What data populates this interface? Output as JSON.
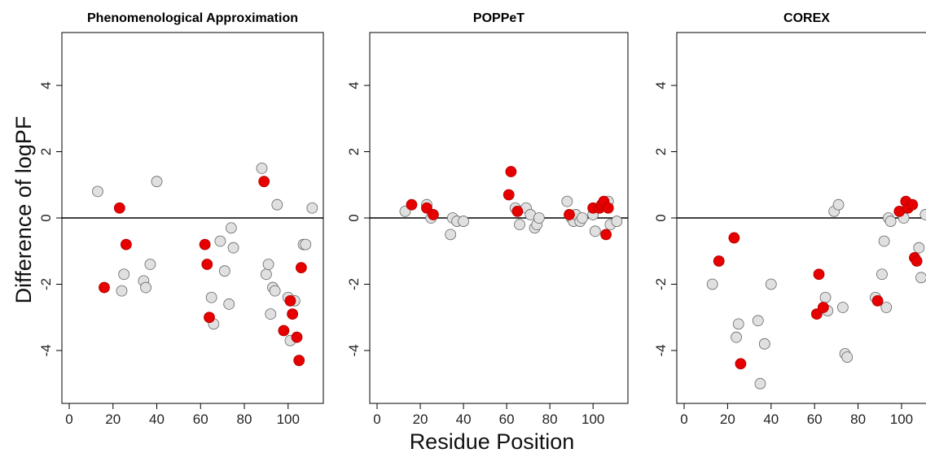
{
  "figure": {
    "xlabel": "Residue Position",
    "ylabel": "Difference of logPF"
  },
  "colors": {
    "highlight": "#e60000",
    "other": "#e0e0e0",
    "outline": "#666666",
    "axis": "#000000"
  },
  "chart_data": [
    {
      "type": "scatter",
      "title": "Phenomenological Approximation",
      "xlim": [
        0,
        112
      ],
      "ylim": [
        -5.4,
        5.4
      ],
      "xticks": [
        0,
        20,
        40,
        60,
        80,
        100
      ],
      "yticks": [
        -4,
        -2,
        0,
        2,
        4
      ],
      "hline": 0,
      "series": [
        {
          "color": "grey",
          "points": [
            [
              13,
              0.8
            ],
            [
              24,
              -2.2
            ],
            [
              25,
              -1.7
            ],
            [
              34,
              -1.9
            ],
            [
              35,
              -2.1
            ],
            [
              37,
              -1.4
            ],
            [
              40,
              1.1
            ],
            [
              65,
              -2.4
            ],
            [
              66,
              -3.2
            ],
            [
              69,
              -0.7
            ],
            [
              71,
              -1.6
            ],
            [
              73,
              -2.6
            ],
            [
              74,
              -0.3
            ],
            [
              75,
              -0.9
            ],
            [
              88,
              1.5
            ],
            [
              90,
              -1.7
            ],
            [
              91,
              -1.4
            ],
            [
              92,
              -2.9
            ],
            [
              93,
              -2.1
            ],
            [
              94,
              -2.2
            ],
            [
              95,
              0.4
            ],
            [
              100,
              -2.4
            ],
            [
              101,
              -3.7
            ],
            [
              103,
              -2.5
            ],
            [
              107,
              -0.8
            ],
            [
              108,
              -0.8
            ],
            [
              111,
              0.3
            ]
          ]
        },
        {
          "color": "red",
          "points": [
            [
              16,
              -2.1
            ],
            [
              23,
              0.3
            ],
            [
              26,
              -0.8
            ],
            [
              62,
              -0.8
            ],
            [
              63,
              -1.4
            ],
            [
              64,
              -3.0
            ],
            [
              89,
              1.1
            ],
            [
              98,
              -3.4
            ],
            [
              101,
              -2.5
            ],
            [
              102,
              -2.9
            ],
            [
              104,
              -3.6
            ],
            [
              105,
              -4.3
            ],
            [
              106,
              -1.5
            ]
          ]
        }
      ]
    },
    {
      "type": "scatter",
      "title": "POPPeT",
      "xlim": [
        0,
        112
      ],
      "ylim": [
        -5.4,
        5.4
      ],
      "xticks": [
        0,
        20,
        40,
        60,
        80,
        100
      ],
      "yticks": [
        -4,
        -2,
        0,
        2,
        4
      ],
      "hline": 0,
      "series": [
        {
          "color": "grey",
          "points": [
            [
              13,
              0.2
            ],
            [
              23,
              0.4
            ],
            [
              25,
              0.0
            ],
            [
              34,
              -0.5
            ],
            [
              35,
              0.0
            ],
            [
              37,
              -0.1
            ],
            [
              40,
              -0.1
            ],
            [
              64,
              0.3
            ],
            [
              66,
              -0.2
            ],
            [
              69,
              0.3
            ],
            [
              71,
              0.1
            ],
            [
              73,
              -0.3
            ],
            [
              74,
              -0.2
            ],
            [
              75,
              0.0
            ],
            [
              88,
              0.5
            ],
            [
              90,
              0.0
            ],
            [
              91,
              -0.1
            ],
            [
              92,
              0.1
            ],
            [
              94,
              -0.1
            ],
            [
              95,
              0.0
            ],
            [
              100,
              0.1
            ],
            [
              101,
              -0.4
            ],
            [
              103,
              0.3
            ],
            [
              107,
              0.5
            ],
            [
              108,
              -0.2
            ],
            [
              111,
              -0.1
            ]
          ]
        },
        {
          "color": "red",
          "points": [
            [
              16,
              0.4
            ],
            [
              23,
              0.3
            ],
            [
              26,
              0.1
            ],
            [
              61,
              0.7
            ],
            [
              62,
              1.4
            ],
            [
              65,
              0.2
            ],
            [
              89,
              0.1
            ],
            [
              100,
              0.3
            ],
            [
              103,
              0.3
            ],
            [
              104,
              0.4
            ],
            [
              105,
              0.5
            ],
            [
              106,
              -0.5
            ],
            [
              107,
              0.3
            ]
          ]
        }
      ]
    },
    {
      "type": "scatter",
      "title": "COREX",
      "xlim": [
        0,
        112
      ],
      "ylim": [
        -5.4,
        5.4
      ],
      "xticks": [
        0,
        20,
        40,
        60,
        80,
        100
      ],
      "yticks": [
        -4,
        -2,
        0,
        2,
        4
      ],
      "hline": 0,
      "series": [
        {
          "color": "grey",
          "points": [
            [
              13,
              -2.0
            ],
            [
              24,
              -3.6
            ],
            [
              25,
              -3.2
            ],
            [
              34,
              -3.1
            ],
            [
              35,
              -5.0
            ],
            [
              37,
              -3.8
            ],
            [
              40,
              -2.0
            ],
            [
              65,
              -2.4
            ],
            [
              66,
              -2.8
            ],
            [
              69,
              0.2
            ],
            [
              71,
              0.4
            ],
            [
              73,
              -2.7
            ],
            [
              74,
              -4.1
            ],
            [
              75,
              -4.2
            ],
            [
              88,
              -2.4
            ],
            [
              91,
              -1.7
            ],
            [
              92,
              -0.7
            ],
            [
              93,
              -2.7
            ],
            [
              94,
              0.0
            ],
            [
              95,
              -0.1
            ],
            [
              101,
              0.0
            ],
            [
              108,
              -0.9
            ],
            [
              109,
              -1.8
            ],
            [
              111,
              0.1
            ]
          ]
        },
        {
          "color": "red",
          "points": [
            [
              16,
              -1.3
            ],
            [
              23,
              -0.6
            ],
            [
              26,
              -4.4
            ],
            [
              61,
              -2.9
            ],
            [
              62,
              -1.7
            ],
            [
              64,
              -2.7
            ],
            [
              89,
              -2.5
            ],
            [
              99,
              0.2
            ],
            [
              102,
              0.5
            ],
            [
              103,
              0.3
            ],
            [
              105,
              0.4
            ],
            [
              106,
              -1.2
            ],
            [
              107,
              -1.3
            ]
          ]
        }
      ]
    }
  ]
}
